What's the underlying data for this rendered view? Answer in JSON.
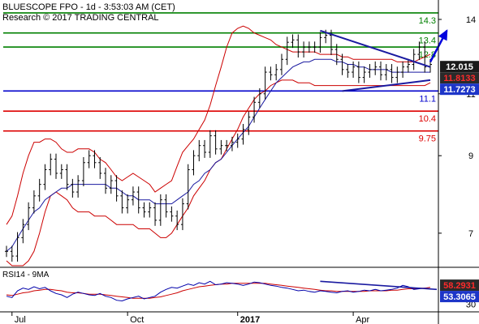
{
  "header": {
    "title": "BLUESCOPE FPO - 1d - 3:53:03 AM (CET)",
    "subtitle": "Research © 2017 TRADING CENTRAL"
  },
  "chart_data": [
    {
      "type": "candlestick",
      "panel": "price",
      "x_tick_labels": [
        "Jul",
        "Oct",
        "2017",
        "Apr"
      ],
      "y_axis_labels": [
        "14",
        "11",
        "9",
        "7"
      ],
      "y_range": [
        6.3,
        14.6
      ],
      "y_scale": "log",
      "levels": [
        {
          "value": 14.3,
          "label": "14.3",
          "color": "#008000",
          "type": "resistance"
        },
        {
          "value": 13.4,
          "label": "13.4",
          "color": "#008000",
          "type": "resistance"
        },
        {
          "value": 12.8,
          "label": "12.8",
          "color": "#008000",
          "type": "resistance"
        },
        {
          "value": 11.1,
          "label": "11.1",
          "color": "#0000cc",
          "type": "pivot"
        },
        {
          "value": 10.4,
          "label": "10.4",
          "color": "#dd0000",
          "type": "support"
        },
        {
          "value": 9.75,
          "label": "9.75",
          "color": "#dd0000",
          "type": "support"
        }
      ],
      "price_badges": [
        {
          "value": 12.015,
          "label": "12.015",
          "bg": "#1a1a1a",
          "fg": "#ffffff"
        },
        {
          "value": 11.8133,
          "label": "11.8133",
          "bg": "#2a2a2a",
          "fg": "#ff2a2a"
        },
        {
          "value": 11.7273,
          "label": "11.7273",
          "bg": "#1d35c8",
          "fg": "#ffffff"
        }
      ],
      "series": [
        {
          "name": "Close",
          "color": "#000000",
          "values": [
            6.6,
            6.5,
            6.9,
            7.2,
            7.6,
            7.9,
            8.2,
            8.6,
            8.9,
            8.5,
            8.6,
            8.2,
            8.0,
            8.3,
            8.8,
            9.0,
            8.8,
            8.5,
            8.1,
            8.3,
            7.9,
            7.6,
            7.8,
            8.0,
            7.6,
            7.5,
            7.6,
            7.3,
            7.8,
            7.5,
            7.4,
            7.2,
            7.7,
            8.6,
            9.0,
            9.3,
            9.1,
            9.6,
            9.2,
            9.3,
            9.3,
            9.4,
            9.5,
            9.8,
            10.2,
            10.7,
            11.0,
            11.8,
            11.7,
            11.9,
            12.3,
            13.0,
            13.1,
            12.6,
            12.8,
            12.8,
            12.8,
            13.2,
            13.3,
            12.7,
            12.3,
            11.9,
            11.8,
            12.0,
            11.6,
            11.8,
            11.9,
            12.0,
            11.7,
            11.9,
            11.6,
            11.8,
            12.0,
            12.1,
            12.5,
            12.8,
            12.0,
            12.1
          ]
        },
        {
          "name": "Bollinger upper",
          "color": "#cc0000",
          "values": [
            7.2,
            7.4,
            7.9,
            8.5,
            9.0,
            9.4,
            9.4,
            9.5,
            9.5,
            9.4,
            9.2,
            9.1,
            9.1,
            9.2,
            9.2,
            9.2,
            9.1,
            8.9,
            8.8,
            8.6,
            8.4,
            8.3,
            8.4,
            8.5,
            8.4,
            8.3,
            8.2,
            8.0,
            8.1,
            8.2,
            8.3,
            8.7,
            9.1,
            9.3,
            9.5,
            9.8,
            10.1,
            10.6,
            11.3,
            12.0,
            12.8,
            13.4,
            13.6,
            13.7,
            13.6,
            13.4,
            13.3,
            13.2,
            13.1,
            12.9,
            12.8,
            12.7,
            12.6,
            12.6,
            12.6,
            12.6,
            12.6,
            12.5,
            12.5,
            12.5,
            12.5,
            12.4,
            12.4,
            12.3,
            12.3,
            12.3,
            12.3,
            12.3,
            12.3,
            12.3,
            12.3,
            12.2,
            12.2,
            12.2,
            12.2,
            12.3,
            12.4,
            12.5
          ]
        },
        {
          "name": "Bollinger lower",
          "color": "#cc0000",
          "values": [
            6.4,
            6.3,
            6.3,
            6.3,
            6.4,
            6.6,
            7.0,
            7.5,
            7.9,
            8.0,
            7.9,
            7.8,
            7.6,
            7.5,
            7.5,
            7.5,
            7.4,
            7.4,
            7.4,
            7.3,
            7.2,
            7.2,
            7.2,
            7.2,
            7.1,
            7.1,
            7.1,
            7.0,
            6.9,
            6.9,
            7.0,
            7.2,
            7.4,
            7.6,
            7.9,
            8.1,
            8.3,
            8.6,
            8.8,
            8.9,
            9.2,
            9.5,
            9.8,
            10.2,
            10.5,
            10.8,
            11.0,
            11.1,
            11.3,
            11.4,
            11.5,
            11.5,
            11.5,
            11.4,
            11.4,
            11.4,
            11.3,
            11.3,
            11.3,
            11.3,
            11.3,
            11.3,
            11.3,
            11.3,
            11.3,
            11.3,
            11.3,
            11.3,
            11.3,
            11.3,
            11.3,
            11.3,
            11.3,
            11.3,
            11.3,
            11.3,
            11.3,
            11.4
          ]
        },
        {
          "name": "Moving average",
          "color": "#1a1aa0",
          "values": [
            6.6,
            6.7,
            6.9,
            7.1,
            7.3,
            7.5,
            7.6,
            7.8,
            7.9,
            8.0,
            8.1,
            8.1,
            8.2,
            8.2,
            8.2,
            8.2,
            8.2,
            8.2,
            8.2,
            8.1,
            8.1,
            8.0,
            7.9,
            7.9,
            7.8,
            7.8,
            7.8,
            7.7,
            7.7,
            7.7,
            7.7,
            7.8,
            7.9,
            8.0,
            8.2,
            8.3,
            8.5,
            8.6,
            8.8,
            8.9,
            9.1,
            9.3,
            9.5,
            9.7,
            9.9,
            10.2,
            10.5,
            10.8,
            11.1,
            11.4,
            11.6,
            11.8,
            12.0,
            12.1,
            12.2,
            12.2,
            12.3,
            12.3,
            12.3,
            12.3,
            12.2,
            12.2,
            12.1,
            12.1,
            12.0,
            12.0,
            11.9,
            11.9,
            11.9,
            11.9,
            11.8,
            11.8,
            11.8,
            11.8,
            11.8,
            11.8,
            11.8,
            11.8
          ]
        }
      ],
      "annotations": [
        {
          "type": "trendline",
          "color": "#1a1aa0",
          "description": "descending resistance",
          "from": [
            57,
            13.5
          ],
          "to": [
            77,
            12.0
          ]
        },
        {
          "type": "trendline",
          "color": "#1a1aa0",
          "description": "rising support",
          "from": [
            61,
            11.1
          ],
          "to": [
            77,
            11.5
          ]
        },
        {
          "type": "arrow",
          "color": "#0000dd",
          "direction": "up",
          "from": [
            77,
            12.2
          ],
          "to": [
            80,
            13.5
          ]
        }
      ]
    },
    {
      "type": "line",
      "panel": "rsi",
      "title": "RSI14 - 9MA",
      "y_axis_labels": [
        "30"
      ],
      "y_range": [
        20,
        80
      ],
      "value_badges": [
        {
          "value": 58.2931,
          "label": "58.2931",
          "bg": "#2a2a2a",
          "fg": "#ff2a2a"
        },
        {
          "value": 53.3065,
          "label": "53.3065",
          "bg": "#1d35c8",
          "fg": "#ffffff"
        }
      ],
      "series": [
        {
          "name": "RSI14",
          "color": "#0000aa",
          "values": [
            42,
            40,
            50,
            54,
            52,
            56,
            53,
            55,
            50,
            46,
            44,
            40,
            45,
            48,
            46,
            44,
            43,
            46,
            42,
            40,
            36,
            35,
            38,
            40,
            42,
            38,
            40,
            42,
            48,
            52,
            55,
            54,
            57,
            60,
            58,
            62,
            60,
            64,
            59,
            60,
            62,
            61,
            60,
            58,
            60,
            63,
            62,
            60,
            58,
            57,
            55,
            54,
            52,
            50,
            51,
            49,
            48,
            50,
            49,
            48,
            47,
            49,
            50,
            48,
            49,
            51,
            50,
            52,
            50,
            51,
            52,
            54,
            58,
            56,
            52,
            53,
            54,
            53
          ]
        },
        {
          "name": "9MA",
          "color": "#cc0000",
          "values": [
            44,
            43,
            45,
            47,
            48,
            50,
            51,
            52,
            52,
            51,
            50,
            48,
            47,
            47,
            46,
            45,
            45,
            45,
            44,
            43,
            42,
            41,
            40,
            39,
            39,
            39,
            39,
            40,
            41,
            43,
            45,
            47,
            50,
            52,
            54,
            56,
            57,
            58,
            59,
            60,
            60,
            61,
            61,
            61,
            61,
            61,
            61,
            61,
            60,
            59,
            58,
            57,
            56,
            55,
            54,
            53,
            52,
            51,
            50,
            50,
            49,
            49,
            49,
            49,
            49,
            49,
            50,
            50,
            50,
            50,
            51,
            51,
            52,
            53,
            53,
            54,
            54,
            55
          ]
        }
      ],
      "annotations": [
        {
          "type": "trendline",
          "color": "#1a1aa0",
          "description": "descending RSI trendline",
          "from": [
            57,
            64
          ],
          "to": [
            80,
            52
          ]
        }
      ]
    }
  ]
}
